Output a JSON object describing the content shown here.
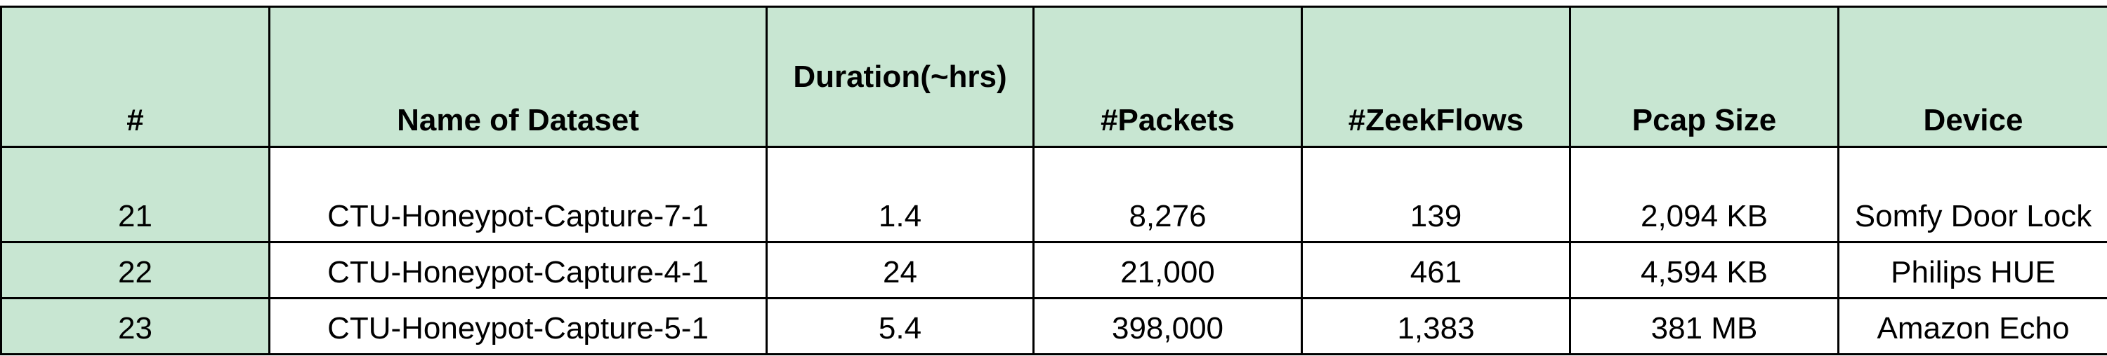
{
  "table": {
    "headers": [
      "#",
      "Name of Dataset",
      "Duration(~hrs)",
      "#Packets",
      "#ZeekFlows",
      "Pcap Size",
      "Device"
    ],
    "rows": [
      [
        "21",
        "CTU-Honeypot-Capture-7-1",
        "1.4",
        "8,276",
        "139",
        "2,094 KB",
        "Somfy Door Lock"
      ],
      [
        "22",
        "CTU-Honeypot-Capture-4-1",
        "24",
        "21,000",
        "461",
        "4,594 KB",
        "Philips HUE"
      ],
      [
        "23",
        "CTU-Honeypot-Capture-5-1",
        "5.4",
        "398,000",
        "1,383",
        "381 MB",
        "Amazon Echo"
      ]
    ]
  },
  "colors": {
    "header_fill": "#c8e6d2",
    "border": "#000000"
  }
}
